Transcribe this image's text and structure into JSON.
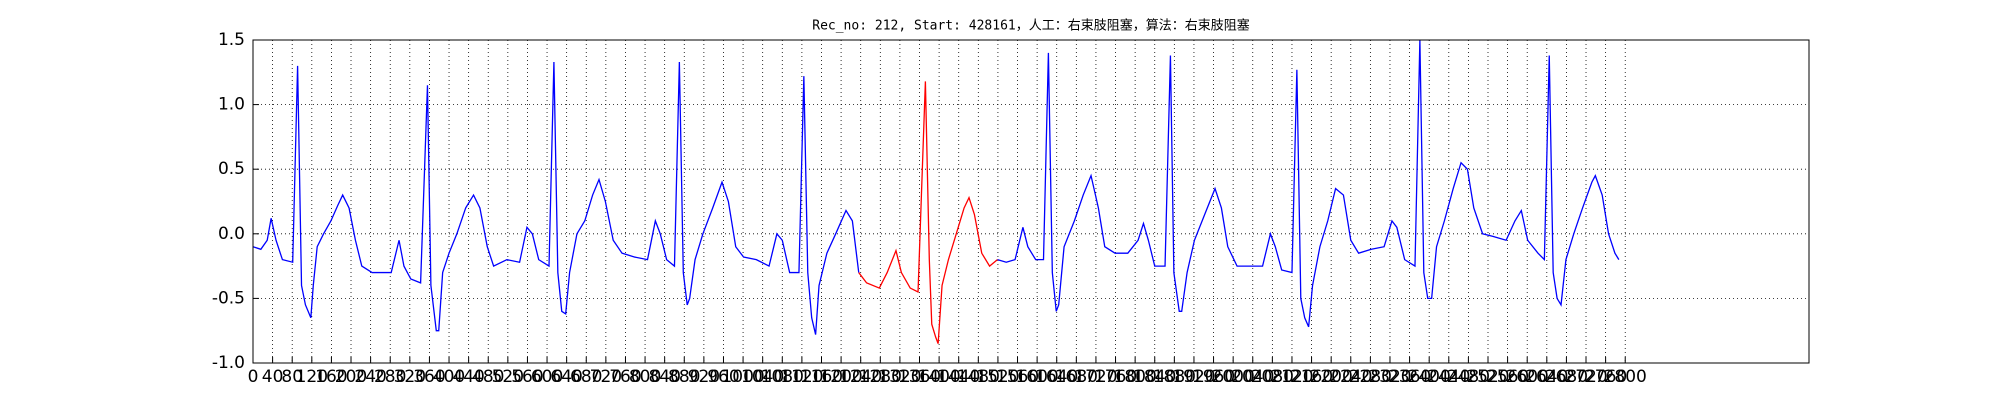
{
  "chart_data": {
    "type": "line",
    "title": "Rec_no: 212, Start: 428161，人工：右束肢阻塞，算法：右束肢阻塞",
    "xlim": [
      0,
      3175
    ],
    "ylim": [
      -1,
      1.5
    ],
    "xticks": [
      0,
      40,
      80,
      120,
      160,
      200,
      240,
      280,
      320,
      360,
      400,
      440,
      480,
      520,
      560,
      600,
      640,
      680,
      720,
      760,
      800,
      840,
      880,
      920,
      960,
      1000,
      1040,
      1080,
      1120,
      1160,
      1200,
      1240,
      1280,
      1320,
      1360,
      1400,
      1440,
      1480,
      1520,
      1560,
      1600,
      1640,
      1680,
      1720,
      1760,
      1800,
      1840,
      1880,
      1920,
      1960,
      2000,
      2040,
      2080,
      2120,
      2160,
      2200,
      2240,
      2280,
      2320,
      2360,
      2400,
      2440,
      2480,
      2520,
      2560,
      2600,
      2640,
      2680,
      2720,
      2760,
      2800
    ],
    "yticks": [
      {
        "value": -1,
        "label": "-1.0"
      },
      -0.5,
      {
        "value": 0,
        "label": "0.0"
      },
      0.5,
      {
        "value": 1,
        "label": "1.0"
      },
      1.5
    ],
    "grid": true,
    "series": [
      {
        "color": "#0000ff",
        "x": [
          0,
          16,
          29,
          37,
          47,
          60,
          81,
          91,
          99,
          107,
          118,
          123,
          131,
          144,
          159,
          173,
          183,
          196,
          209,
          222,
          243,
          269,
          282,
          298,
          308,
          322,
          342,
          356,
          363,
          374,
          379,
          387,
          400,
          416,
          434,
          450,
          463,
          478,
          491,
          518,
          544,
          559,
          570,
          583,
          604,
          614,
          622,
          630,
          638,
          646,
          661,
          677,
          693,
          706,
          719,
          735,
          753,
          779,
          805,
          821,
          831,
          844,
          860,
          870,
          878,
          886,
          891,
          902,
          918,
          938,
          957,
          970,
          985,
          1001,
          1027,
          1053,
          1069,
          1080,
          1095,
          1114,
          1124,
          1132,
          1140,
          1148,
          1155,
          1171,
          1189,
          1210,
          1223,
          1236,
          1372,
          1519,
          1537,
          1555,
          1571,
          1581,
          1597,
          1613,
          1623,
          1631,
          1639,
          1644,
          1655,
          1676,
          1694,
          1710,
          1725,
          1738,
          1759,
          1785,
          1806,
          1817,
          1827,
          1840,
          1861,
          1872,
          1879,
          1890,
          1895,
          1906,
          1921,
          1942,
          1963,
          1976,
          1989,
          2008,
          2034,
          2060,
          2076,
          2086,
          2099,
          2120,
          2130,
          2138,
          2146,
          2154,
          2162,
          2177,
          2193,
          2209,
          2225,
          2240,
          2256,
          2282,
          2308,
          2324,
          2334,
          2350,
          2371,
          2381,
          2389,
          2397,
          2405,
          2415,
          2431,
          2449,
          2465,
          2478,
          2491,
          2509,
          2530,
          2557,
          2575,
          2588,
          2601,
          2622,
          2635,
          2645,
          2653,
          2661,
          2669,
          2679,
          2695,
          2713,
          2732,
          2739,
          2753,
          2766,
          2779,
          2787
        ],
        "values": [
          -0.1,
          -0.12,
          -0.05,
          0.12,
          -0.05,
          -0.2,
          -0.22,
          1.3,
          -0.4,
          -0.55,
          -0.65,
          -0.4,
          -0.1,
          0.0,
          0.1,
          0.22,
          0.3,
          0.2,
          -0.05,
          -0.25,
          -0.3,
          -0.3,
          -0.3,
          -0.05,
          -0.25,
          -0.35,
          -0.38,
          1.15,
          -0.4,
          -0.75,
          -0.75,
          -0.3,
          -0.15,
          0.0,
          0.2,
          0.3,
          0.2,
          -0.1,
          -0.25,
          -0.2,
          -0.22,
          0.05,
          0.0,
          -0.2,
          -0.25,
          1.33,
          -0.3,
          -0.6,
          -0.62,
          -0.3,
          0.0,
          0.1,
          0.3,
          0.42,
          0.25,
          -0.05,
          -0.15,
          -0.18,
          -0.2,
          0.1,
          0.0,
          -0.2,
          -0.25,
          1.33,
          -0.3,
          -0.55,
          -0.5,
          -0.2,
          0.0,
          0.2,
          0.4,
          0.25,
          -0.1,
          -0.18,
          -0.2,
          -0.25,
          0.0,
          -0.05,
          -0.3,
          -0.3,
          1.22,
          -0.3,
          -0.65,
          -0.78,
          -0.4,
          -0.15,
          0.0,
          0.18,
          0.1,
          -0.3,
          null,
          -0.2,
          -0.22,
          -0.2,
          0.05,
          -0.1,
          -0.2,
          -0.2,
          1.4,
          -0.3,
          -0.6,
          -0.55,
          -0.1,
          0.1,
          0.3,
          0.45,
          0.2,
          -0.1,
          -0.15,
          -0.15,
          -0.05,
          0.08,
          -0.05,
          -0.25,
          -0.25,
          1.38,
          -0.3,
          -0.6,
          -0.6,
          -0.3,
          -0.05,
          0.15,
          0.35,
          0.2,
          -0.1,
          -0.25,
          -0.25,
          -0.25,
          0.0,
          -0.1,
          -0.28,
          -0.3,
          1.27,
          -0.5,
          -0.65,
          -0.72,
          -0.4,
          -0.1,
          0.1,
          0.35,
          0.3,
          -0.05,
          -0.15,
          -0.12,
          -0.1,
          0.1,
          0.05,
          -0.2,
          -0.25,
          1.5,
          -0.3,
          -0.5,
          -0.5,
          -0.1,
          0.1,
          0.35,
          0.55,
          0.5,
          0.2,
          0.0,
          -0.02,
          -0.05,
          0.1,
          0.18,
          -0.05,
          -0.15,
          -0.2,
          1.38,
          -0.3,
          -0.5,
          -0.55,
          -0.2,
          0.0,
          0.2,
          0.4,
          0.45,
          0.3,
          0.0,
          -0.15,
          -0.2
        ]
      },
      {
        "color": "#ff0000",
        "x": [
          1236,
          1252,
          1278,
          1294,
          1312,
          1323,
          1341,
          1357,
          1372,
          1380,
          1385,
          1393,
          1398,
          1406,
          1419,
          1435,
          1451,
          1461,
          1472,
          1487,
          1503,
          1519
        ],
        "values": [
          -0.3,
          -0.38,
          -0.42,
          -0.3,
          -0.13,
          -0.3,
          -0.42,
          -0.45,
          1.18,
          -0.2,
          -0.7,
          -0.8,
          -0.85,
          -0.4,
          -0.2,
          0.0,
          0.2,
          0.28,
          0.15,
          -0.15,
          -0.25,
          -0.2
        ]
      }
    ]
  }
}
